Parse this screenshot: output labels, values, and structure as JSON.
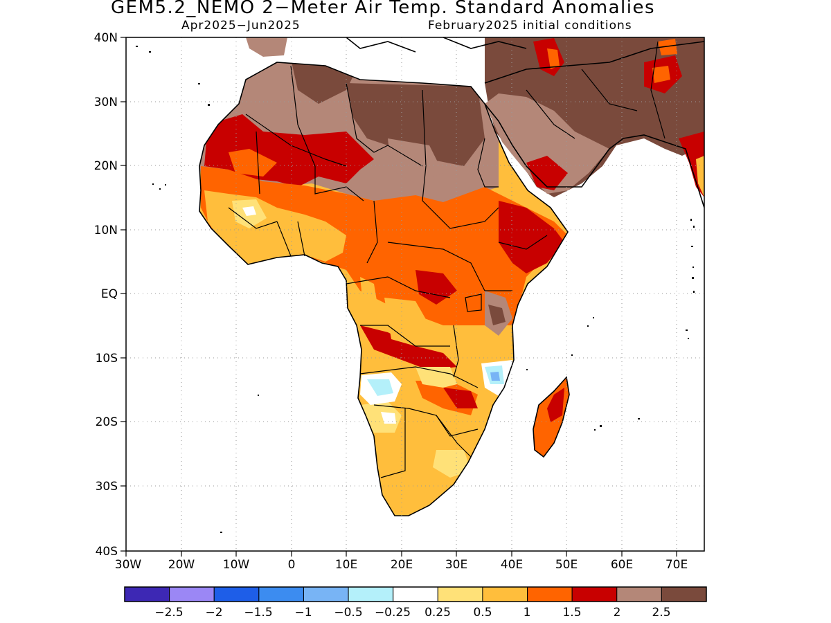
{
  "title": "GEM5.2_NEMO 2−Meter Air Temp. Standard Anomalies",
  "subtitle_left": "Apr2025−Jun2025",
  "subtitle_right": "February2025 initial conditions",
  "map": {
    "region": "Africa",
    "lat_range": [
      -40,
      40
    ],
    "lon_range": [
      -30,
      75
    ],
    "lat_labels": [
      "40N",
      "30N",
      "20N",
      "10N",
      "EQ",
      "10S",
      "20S",
      "30S",
      "40S"
    ],
    "lon_labels": [
      "30W",
      "20W",
      "10W",
      "0",
      "10E",
      "20E",
      "30E",
      "40E",
      "50E",
      "60E",
      "70E"
    ],
    "dominant_anomaly_by_area": [
      {
        "area": "Sahara / North Africa",
        "category": "2 to 2.5+"
      },
      {
        "area": "Arabian Peninsula / Middle East",
        "category": ">2.5"
      },
      {
        "area": "Sahel",
        "category": "1.5 to 2"
      },
      {
        "area": "West African coast",
        "category": "0.25 to 1"
      },
      {
        "area": "Central & East Africa",
        "category": "1 to 2"
      },
      {
        "area": "Southern Africa",
        "category": "0.5 to 1"
      },
      {
        "area": "Angola interior",
        "category": "-0.5 to -0.25"
      },
      {
        "area": "Mozambique north",
        "category": "-1 to -0.25"
      },
      {
        "area": "Madagascar",
        "category": "1.5 to 2"
      }
    ]
  },
  "colorbar": {
    "labels": [
      "−2.5",
      "−2",
      "−1.5",
      "−1",
      "−0.5",
      "−0.25",
      "0.25",
      "0.5",
      "1",
      "1.5",
      "2",
      "2.5"
    ],
    "colors": [
      "#3d28b4",
      "#9b87f5",
      "#1e5ee8",
      "#3c8cf0",
      "#78b4f5",
      "#b4f0fa",
      "#ffffff",
      "#ffe178",
      "#ffbe3c",
      "#ff6400",
      "#c80000",
      "#b48778",
      "#7a4a3c"
    ]
  }
}
